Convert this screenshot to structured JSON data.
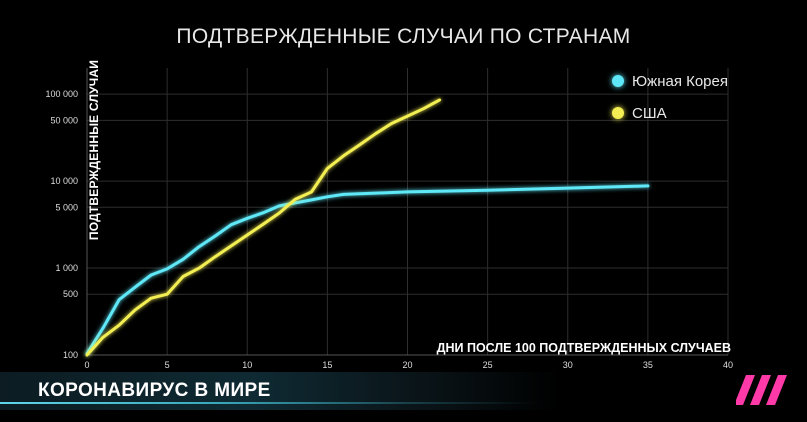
{
  "chart_data": {
    "type": "line",
    "title": "ПОДТВЕРЖДЕННЫЕ СЛУЧАИ ПО СТРАНАМ",
    "xlabel": "ДНИ ПОСЛЕ 100 ПОДТВЕРЖДЕННЫХ СЛУЧАЕВ",
    "ylabel": "ПОДТВЕРЖДЕННЫЕ СЛУЧАИ",
    "xlim": [
      0,
      40
    ],
    "ylim": [
      100,
      200000
    ],
    "yscale": "log",
    "x_ticks": [
      0,
      5,
      10,
      15,
      20,
      25,
      30,
      35,
      40
    ],
    "y_ticks": [
      {
        "value": 100,
        "label": "100"
      },
      {
        "value": 500,
        "label": "500"
      },
      {
        "value": 1000,
        "label": "1 000"
      },
      {
        "value": 5000,
        "label": "5 000"
      },
      {
        "value": 10000,
        "label": "10 000"
      },
      {
        "value": 50000,
        "label": "50 000"
      },
      {
        "value": 100000,
        "label": "100 000"
      }
    ],
    "grid": true,
    "legend_position": "top-right",
    "series": [
      {
        "name": "Южная Корея",
        "color": "#5ee8f7",
        "x": [
          0,
          1,
          2,
          3,
          4,
          5,
          6,
          7,
          8,
          9,
          10,
          11,
          12,
          13,
          14,
          15,
          16,
          20,
          25,
          30,
          35
        ],
        "y": [
          104,
          204,
          433,
          602,
          833,
          977,
          1261,
          1766,
          2337,
          3150,
          3736,
          4335,
          5186,
          5621,
          6088,
          6593,
          7041,
          7513,
          7869,
          8320,
          8800
        ]
      },
      {
        "name": "США",
        "color": "#f3ef52",
        "x": [
          0,
          1,
          2,
          3,
          4,
          5,
          6,
          7,
          8,
          9,
          10,
          11,
          12,
          13,
          14,
          15,
          16,
          17,
          18,
          19,
          20,
          21,
          22
        ],
        "y": [
          100,
          160,
          220,
          330,
          450,
          500,
          800,
          1000,
          1350,
          1800,
          2400,
          3200,
          4300,
          6200,
          7500,
          14000,
          19500,
          26000,
          35000,
          46000,
          56000,
          68000,
          86000
        ]
      }
    ]
  },
  "banner": {
    "text": "КОРОНАВИРУС В МИРЕ"
  }
}
